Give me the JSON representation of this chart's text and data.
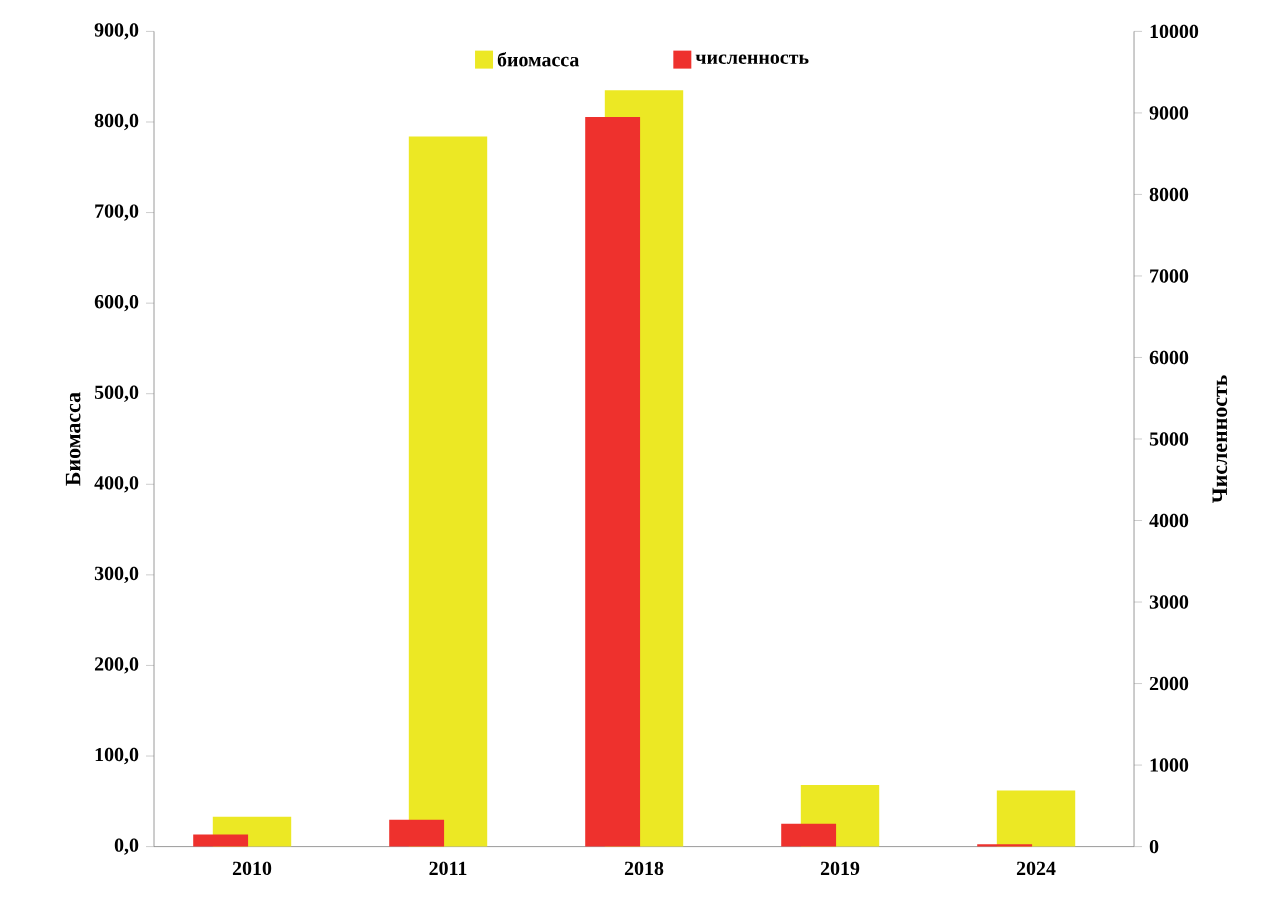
{
  "chart_data": {
    "type": "bar",
    "categories": [
      "2010",
      "2011",
      "2018",
      "2019",
      "2024"
    ],
    "ylabel": "Биомасса",
    "y2label": "Численность",
    "ylim": [
      0,
      900
    ],
    "yticks": [
      {
        "value": 0,
        "label": "0,0"
      },
      {
        "value": 100,
        "label": "100,0"
      },
      {
        "value": 200,
        "label": "200,0"
      },
      {
        "value": 300,
        "label": "300,0"
      },
      {
        "value": 400,
        "label": "400,0"
      },
      {
        "value": 500,
        "label": "500,0"
      },
      {
        "value": 600,
        "label": "600,0"
      },
      {
        "value": 700,
        "label": "700,0"
      },
      {
        "value": 800,
        "label": "800,0"
      },
      {
        "value": 900,
        "label": "900,0"
      }
    ],
    "y2lim": [
      0,
      10000
    ],
    "y2ticks": [
      0,
      1000,
      2000,
      3000,
      4000,
      5000,
      6000,
      7000,
      8000,
      9000,
      10000
    ],
    "legend": "top",
    "series": [
      {
        "name": "биомасса",
        "color": "#ece824",
        "values": [
          33,
          784,
          835,
          68,
          62
        ]
      },
      {
        "name": "численность",
        "color": "#ee312d",
        "axis": "y2",
        "values": [
          150,
          330,
          8950,
          280,
          30
        ]
      }
    ]
  }
}
